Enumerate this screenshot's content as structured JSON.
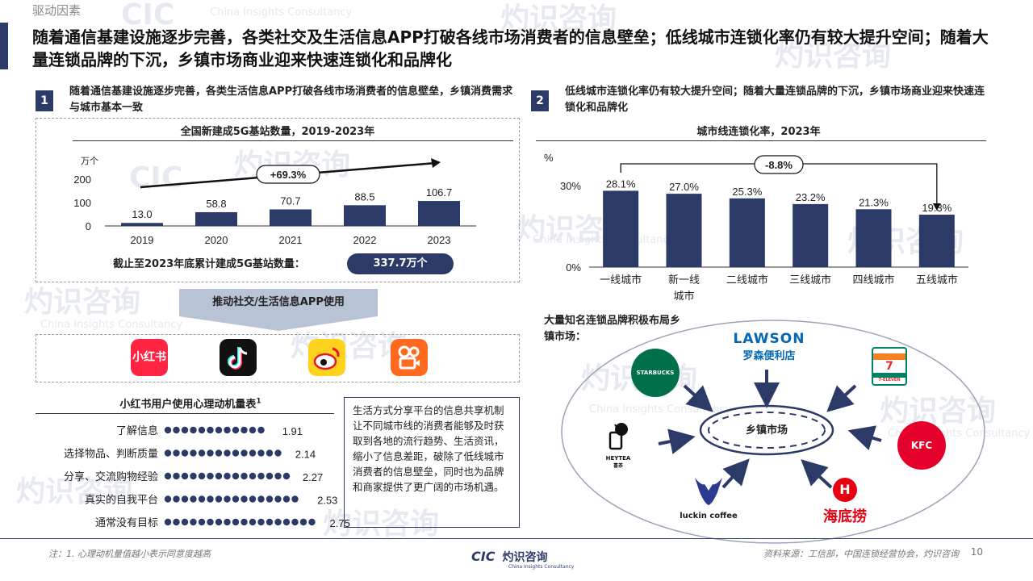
{
  "section": "驱动因素",
  "headline": "随着通信基建设施逐步完善，各类社交及生活信息APP打破各线市场消费者的信息壁垒；低线城市连锁化率仍有较大提升空间；随着大量连锁品牌的下沉，乡镇市场商业迎来快速连锁化和品牌化",
  "left": {
    "badge": "1",
    "intro": "随着通信基建设施逐步完善，各类生活信息APP打破各线市场消费者的信息壁垒，乡镇消费需求与城市基本一致",
    "total_label": "截止至2023年底累计建成5G基站数量：",
    "total_value": "337.7万个",
    "arrow_label": "推动社交/生活信息APP使用",
    "apps": [
      "小红书",
      "抖音",
      "微博",
      "快手"
    ],
    "survey_title": "小红书用户使用心理动机量表",
    "survey_sup": "1",
    "note": "生活方式分享平台的信息共享机制让不同城市线的消费者能够及时获取到各地的流行趋势、生活资讯，缩小了信息差距，破除了低线城市消费者的信息壁垒，同时也为品牌和商家提供了更广阔的市场机遇。"
  },
  "right": {
    "badge": "2",
    "intro": "低线城市连锁化率仍有较大提升空间；随着大量连锁品牌的下沉，乡镇市场商业迎来快速连锁化和品牌化",
    "brands_caption": "大量知名连锁品牌积极布局乡镇市场：",
    "center_label": "乡镇市场",
    "brands": [
      "STARBUCKS COFFEE",
      "LAWSON",
      "罗森便利店",
      "7-ELEVEN",
      "KFC",
      "海底捞",
      "luckin coffee",
      "HEYTEA",
      "喜茶"
    ]
  },
  "chart_data": [
    {
      "type": "bar",
      "title": "全国新建成5G基站数量，2019-2023年",
      "unit": "万个",
      "categories": [
        "2019",
        "2020",
        "2021",
        "2022",
        "2023"
      ],
      "values": [
        13.0,
        58.8,
        70.7,
        88.5,
        106.7
      ],
      "value_labels": [
        "13.0",
        "58.8",
        "70.7",
        "88.5",
        "106.7"
      ],
      "yticks": [
        "0",
        "100",
        "200"
      ],
      "ylim": [
        0,
        200
      ],
      "annotation": "+69.3%",
      "color": "#2b3a67"
    },
    {
      "type": "bar",
      "title": "城市线连锁化率，2023年",
      "unit": "%",
      "categories": [
        "一线城市",
        "新一线城市",
        "二线城市",
        "三线城市",
        "四线城市",
        "五线城市"
      ],
      "values": [
        28.1,
        27.0,
        25.3,
        23.2,
        21.3,
        19.3
      ],
      "value_labels": [
        "28.1%",
        "27.0%",
        "25.3%",
        "23.2%",
        "21.3%",
        "19.3%"
      ],
      "yticks": [
        "0%",
        "30%"
      ],
      "ylim": [
        0,
        30
      ],
      "annotation": "-8.8%",
      "color": "#2b3a67"
    },
    {
      "type": "bar",
      "title": "小红书用户使用心理动机量表",
      "categories": [
        "了解信息",
        "选择物品、判断质量",
        "分享、交流购物经验",
        "真实的自我平台",
        "通常没有目标"
      ],
      "values": [
        1.91,
        2.14,
        2.27,
        2.53,
        2.75
      ],
      "value_labels": [
        "1.91",
        "2.14",
        "2.27",
        "2.53",
        "2.75"
      ],
      "color": "#2b3a67"
    }
  ],
  "footer": {
    "note": "注：1. 心理动机量值越小表示同意度越高",
    "logo_cn": "灼识咨询",
    "logo_en": "China Insights Consultancy",
    "logo_mark": "CIC",
    "source": "资料来源：工信部，中国连锁经营协会，灼识咨询",
    "page": "10"
  },
  "watermark": {
    "cn": "灼识咨询",
    "en": "China Insights Consultancy",
    "mark": "CIC"
  }
}
